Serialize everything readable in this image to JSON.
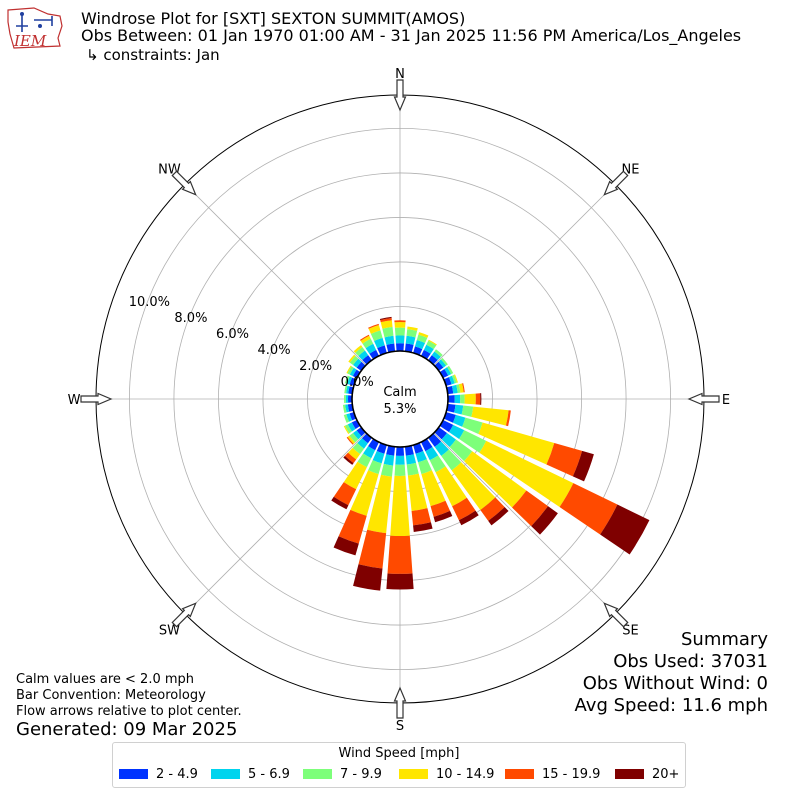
{
  "header": {
    "logo_text": "IEM",
    "title": "Windrose Plot for [SXT] SEXTON SUMMIT(AMOS)",
    "obs_between": "Obs Between: 01 Jan 1970 01:00 AM - 31 Jan 2025 11:56 PM America/Los_Angeles",
    "constraints": "↳ constraints: Jan"
  },
  "summary": {
    "title": "Summary",
    "obs_used": "Obs Used: 37031",
    "obs_without_wind": "Obs Without Wind: 0",
    "avg_speed": "Avg Speed: 11.6 mph"
  },
  "notes": {
    "calm": "Calm values are < 2.0 mph",
    "bar_convention": "Bar Convention: Meteorology",
    "flow_arrows": "Flow arrows relative to plot center.",
    "generated": "Generated: 09 Mar 2025"
  },
  "legend": {
    "title": "Wind Speed [mph]",
    "items": [
      {
        "label": "2 - 4.9",
        "color": "#0033ff"
      },
      {
        "label": "5 - 6.9",
        "color": "#00d4ee"
      },
      {
        "label": "7 - 9.9",
        "color": "#7dff7a"
      },
      {
        "label": "10 - 14.9",
        "color": "#ffe600"
      },
      {
        "label": "15 - 19.9",
        "color": "#ff4a00"
      },
      {
        "label": "20+",
        "color": "#7f0000"
      }
    ]
  },
  "chart_data": {
    "type": "windrose",
    "center_label": "Calm",
    "calm_percent": "5.3%",
    "radial_ticks": [
      "0.0%",
      "2.0%",
      "4.0%",
      "6.0%",
      "8.0%",
      "10.0%"
    ],
    "radial_tick_values": [
      0,
      2,
      4,
      6,
      8,
      10
    ],
    "rmax_percent": 11.5,
    "compass_labels": [
      "N",
      "NE",
      "E",
      "SE",
      "S",
      "SW",
      "W",
      "NW"
    ],
    "compass_angles": [
      0,
      45,
      90,
      135,
      180,
      225,
      270,
      315
    ],
    "bin_width_deg": 10,
    "speed_bins": [
      "2 - 4.9",
      "5 - 6.9",
      "7 - 9.9",
      "10 - 14.9",
      "15 - 19.9",
      "20+"
    ],
    "directions": [
      {
        "deg": 0,
        "values": [
          0.35,
          0.35,
          0.35,
          0.25,
          0.08,
          0.0
        ]
      },
      {
        "deg": 10,
        "values": [
          0.35,
          0.35,
          0.3,
          0.12,
          0.0,
          0.0
        ]
      },
      {
        "deg": 20,
        "values": [
          0.3,
          0.3,
          0.25,
          0.12,
          0.0,
          0.0
        ]
      },
      {
        "deg": 30,
        "values": [
          0.3,
          0.25,
          0.2,
          0.05,
          0.0,
          0.0
        ]
      },
      {
        "deg": 40,
        "values": [
          0.28,
          0.2,
          0.12,
          0.0,
          0.0,
          0.0
        ]
      },
      {
        "deg": 50,
        "values": [
          0.25,
          0.15,
          0.1,
          0.0,
          0.0,
          0.0
        ]
      },
      {
        "deg": 60,
        "values": [
          0.25,
          0.15,
          0.1,
          0.0,
          0.0,
          0.0
        ]
      },
      {
        "deg": 70,
        "values": [
          0.25,
          0.15,
          0.1,
          0.05,
          0.0,
          0.0
        ]
      },
      {
        "deg": 80,
        "values": [
          0.25,
          0.2,
          0.12,
          0.15,
          0.05,
          0.0
        ]
      },
      {
        "deg": 90,
        "values": [
          0.3,
          0.25,
          0.2,
          0.5,
          0.2,
          0.05
        ]
      },
      {
        "deg": 100,
        "values": [
          0.35,
          0.35,
          0.45,
          1.6,
          0.1,
          0.0
        ]
      },
      {
        "deg": 110,
        "values": [
          0.45,
          0.45,
          0.8,
          3.35,
          1.3,
          0.55
        ]
      },
      {
        "deg": 120,
        "values": [
          0.5,
          0.55,
          1.1,
          4.35,
          2.2,
          1.6
        ]
      },
      {
        "deg": 130,
        "values": [
          0.45,
          0.5,
          0.9,
          3.0,
          1.2,
          0.55
        ]
      },
      {
        "deg": 140,
        "values": [
          0.5,
          0.5,
          0.8,
          2.2,
          0.6,
          0.25
        ]
      },
      {
        "deg": 150,
        "values": [
          0.45,
          0.45,
          0.6,
          1.7,
          0.7,
          0.25
        ]
      },
      {
        "deg": 160,
        "values": [
          0.4,
          0.4,
          0.55,
          1.5,
          0.5,
          0.25
        ]
      },
      {
        "deg": 170,
        "values": [
          0.4,
          0.4,
          0.5,
          1.6,
          0.65,
          0.3
        ]
      },
      {
        "deg": 180,
        "values": [
          0.4,
          0.4,
          0.5,
          2.7,
          1.7,
          0.7
        ]
      },
      {
        "deg": 190,
        "values": [
          0.4,
          0.45,
          0.5,
          2.55,
          1.6,
          1.0
        ]
      },
      {
        "deg": 200,
        "values": [
          0.4,
          0.45,
          0.5,
          1.95,
          1.3,
          0.55
        ]
      },
      {
        "deg": 210,
        "values": [
          0.4,
          0.4,
          0.45,
          1.1,
          0.8,
          0.2
        ]
      },
      {
        "deg": 220,
        "values": [
          0.3,
          0.3,
          0.3,
          0.3,
          0.2,
          0.1
        ]
      },
      {
        "deg": 230,
        "values": [
          0.25,
          0.2,
          0.2,
          0.1,
          0.05,
          0.0
        ]
      },
      {
        "deg": 240,
        "values": [
          0.25,
          0.2,
          0.15,
          0.05,
          0.0,
          0.0
        ]
      },
      {
        "deg": 250,
        "values": [
          0.2,
          0.15,
          0.12,
          0.0,
          0.0,
          0.0
        ]
      },
      {
        "deg": 260,
        "values": [
          0.2,
          0.12,
          0.1,
          0.0,
          0.0,
          0.0
        ]
      },
      {
        "deg": 270,
        "values": [
          0.18,
          0.1,
          0.08,
          0.0,
          0.0,
          0.0
        ]
      },
      {
        "deg": 280,
        "values": [
          0.18,
          0.1,
          0.08,
          0.0,
          0.0,
          0.0
        ]
      },
      {
        "deg": 290,
        "values": [
          0.2,
          0.12,
          0.1,
          0.0,
          0.0,
          0.0
        ]
      },
      {
        "deg": 300,
        "values": [
          0.2,
          0.15,
          0.12,
          0.05,
          0.0,
          0.0
        ]
      },
      {
        "deg": 310,
        "values": [
          0.25,
          0.2,
          0.18,
          0.08,
          0.0,
          0.0
        ]
      },
      {
        "deg": 320,
        "values": [
          0.28,
          0.25,
          0.2,
          0.1,
          0.0,
          0.0
        ]
      },
      {
        "deg": 330,
        "values": [
          0.3,
          0.3,
          0.25,
          0.15,
          0.05,
          0.0
        ]
      },
      {
        "deg": 340,
        "values": [
          0.35,
          0.35,
          0.35,
          0.25,
          0.05,
          0.0
        ]
      },
      {
        "deg": 350,
        "values": [
          0.35,
          0.35,
          0.4,
          0.3,
          0.1,
          0.05
        ]
      }
    ]
  }
}
